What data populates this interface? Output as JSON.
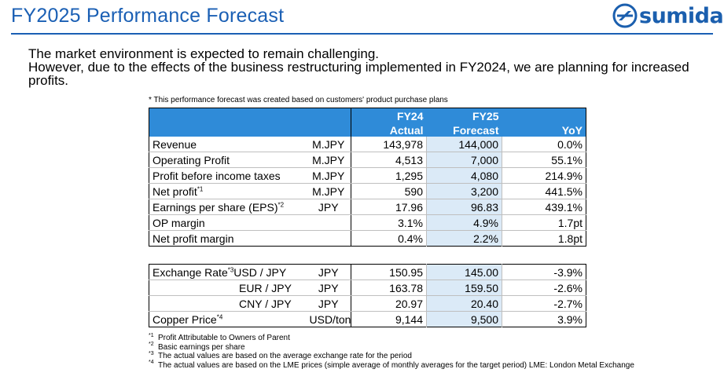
{
  "header": {
    "title": "FY2025 Performance Forecast",
    "logo_text": "sumida",
    "brand_color": "#1b5fae"
  },
  "intro": {
    "line1": "The market environment is expected to remain challenging.",
    "line2": "However, due to the effects of the business restructuring implemented in FY2024, we are planning for increased",
    "line3": "profits."
  },
  "table_note": "* This performance forecast was created based on customers' product purchase plans",
  "table": {
    "header": {
      "col1_top": "FY24",
      "col1_bottom": "Actual",
      "col2_top": "FY25",
      "col2_bottom": "Forecast",
      "col3": "YoY"
    },
    "rows": [
      {
        "label": "Revenue",
        "sup": "",
        "unit": "M.JPY",
        "fy24": "143,978",
        "fy25": "144,000",
        "yoy": "0.0%"
      },
      {
        "label": "Operating Profit",
        "sup": "",
        "unit": "M.JPY",
        "fy24": "4,513",
        "fy25": "7,000",
        "yoy": "55.1%"
      },
      {
        "label": "Profit before income taxes",
        "sup": "",
        "unit": "M.JPY",
        "fy24": "1,295",
        "fy25": "4,080",
        "yoy": "214.9%"
      },
      {
        "label": "Net profit",
        "sup": "*1",
        "unit": "M.JPY",
        "fy24": "590",
        "fy25": "3,200",
        "yoy": "441.5%"
      },
      {
        "label": "Earnings per share (EPS)",
        "sup": "*2",
        "unit": "JPY",
        "fy24": "17.96",
        "fy25": "96.83",
        "yoy": "439.1%"
      },
      {
        "label": "OP margin",
        "sup": "",
        "unit": "",
        "fy24": "3.1%",
        "fy25": "4.9%",
        "yoy": "1.7pt"
      },
      {
        "label": "Net profit margin",
        "sup": "",
        "unit": "",
        "fy24": "0.4%",
        "fy25": "2.2%",
        "yoy": "1.8pt"
      }
    ]
  },
  "fx_table": {
    "rows": [
      {
        "label": "Exchange Rate",
        "sup": "*3",
        "pair": "USD / JPY",
        "unit": "JPY",
        "fy24": "150.95",
        "fy25": "145.00",
        "yoy": "-3.9%"
      },
      {
        "label": "",
        "sup": "",
        "pair": "EUR / JPY",
        "unit": "JPY",
        "fy24": "163.78",
        "fy25": "159.50",
        "yoy": "-2.6%"
      },
      {
        "label": "",
        "sup": "",
        "pair": "CNY / JPY",
        "unit": "JPY",
        "fy24": "20.97",
        "fy25": "20.40",
        "yoy": "-2.7%"
      },
      {
        "label": "Copper Price",
        "sup": "*4",
        "pair": "",
        "unit": "USD/ton",
        "fy24": "9,144",
        "fy25": "9,500",
        "yoy": "3.9%"
      }
    ]
  },
  "footnotes": [
    {
      "mark": "*1",
      "text": "Profit Attributable to Owners of Parent"
    },
    {
      "mark": "*2",
      "text": "Basic earnings per share"
    },
    {
      "mark": "*3",
      "text": "The actual values are based on the average exchange rate for the period"
    },
    {
      "mark": "*4",
      "text": "The actual values are based on the LME prices (simple average of monthly averages for the target period)     LME: London Metal Exchange"
    }
  ]
}
